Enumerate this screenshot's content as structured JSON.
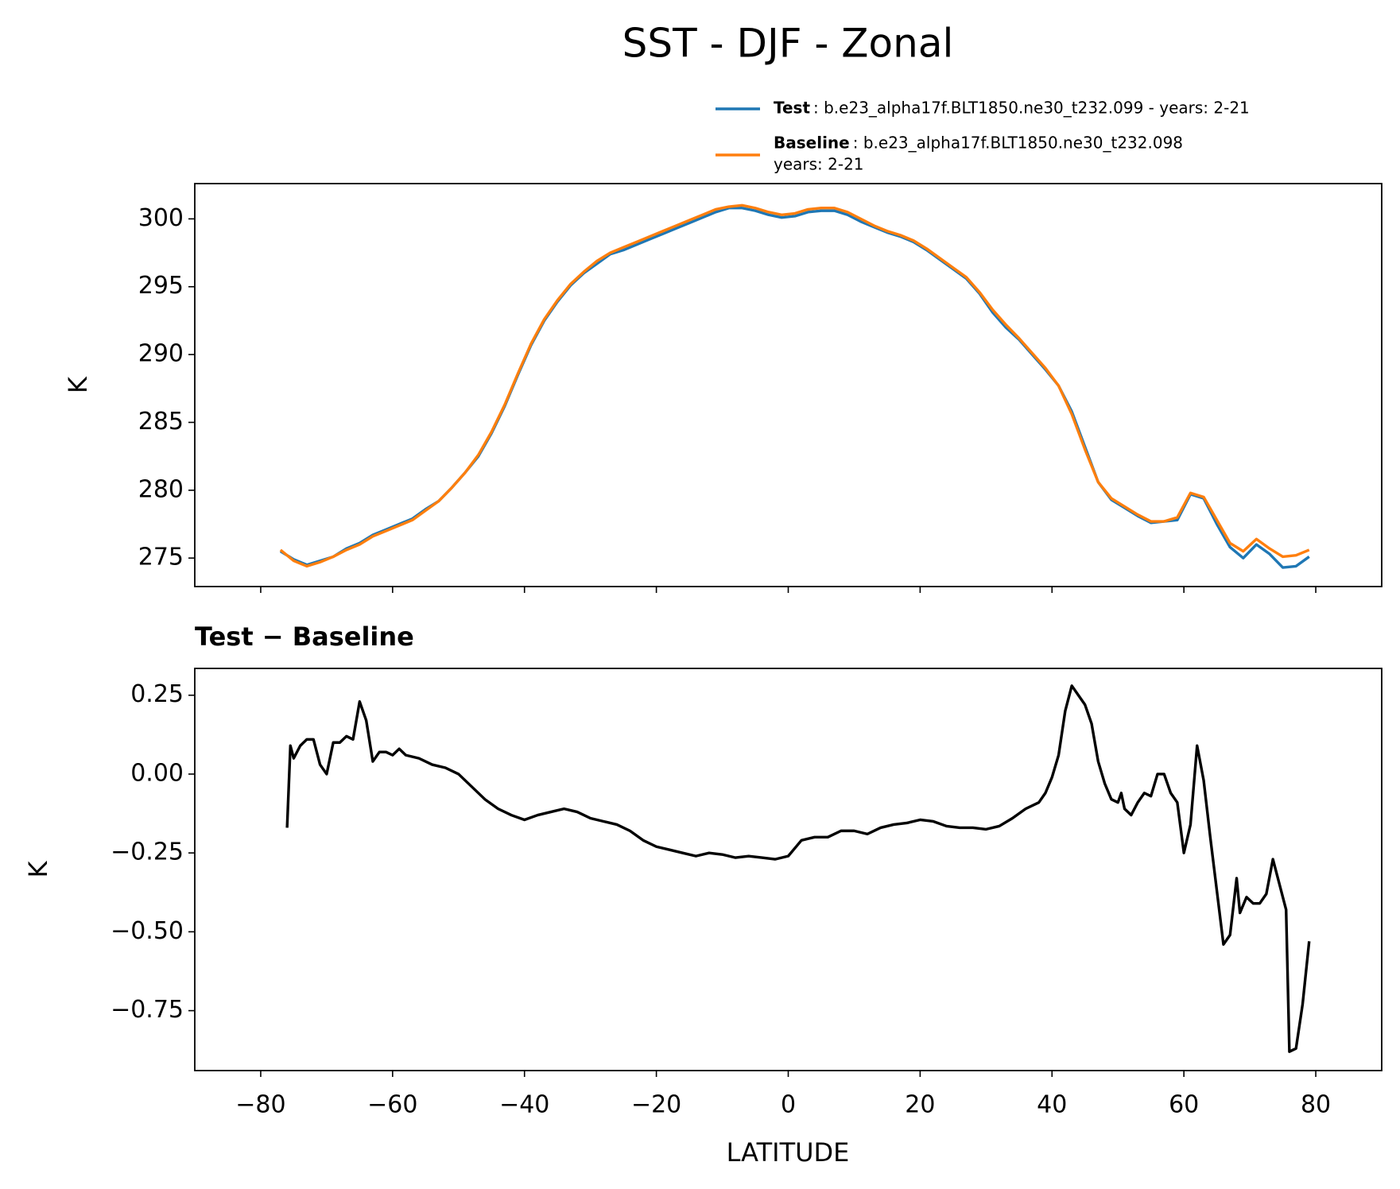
{
  "chart_data": [
    {
      "type": "line",
      "title": "SST - DJF - Zonal",
      "ylabel": "K",
      "x": [
        -77,
        -75,
        -73,
        -71,
        -69,
        -67,
        -65,
        -63,
        -61,
        -59,
        -57,
        -55,
        -53,
        -51,
        -49,
        -47,
        -45,
        -43,
        -41,
        -39,
        -37,
        -35,
        -33,
        -31,
        -29,
        -27,
        -25,
        -23,
        -21,
        -19,
        -17,
        -15,
        -13,
        -11,
        -9,
        -7,
        -5,
        -3,
        -1,
        1,
        3,
        5,
        7,
        9,
        11,
        13,
        15,
        17,
        19,
        21,
        23,
        25,
        27,
        29,
        31,
        33,
        35,
        37,
        39,
        41,
        43,
        45,
        47,
        49,
        51,
        53,
        55,
        57,
        59,
        61,
        63,
        65,
        67,
        69,
        71,
        73,
        75,
        77,
        79
      ],
      "series": [
        {
          "name": "Test",
          "label_lines": [
            ": b.e23_alpha17f.BLT1850.ne30_t232.099 - years: 2-21"
          ],
          "color": "#1f77b4",
          "values": [
            275.5,
            274.9,
            274.5,
            274.8,
            275.1,
            275.7,
            276.1,
            276.7,
            277.1,
            277.5,
            277.9,
            278.6,
            279.2,
            280.2,
            281.3,
            282.5,
            284.2,
            286.2,
            288.5,
            290.7,
            292.5,
            293.9,
            295.1,
            296.0,
            296.7,
            297.4,
            297.7,
            298.1,
            298.5,
            298.9,
            299.3,
            299.7,
            300.1,
            300.5,
            300.8,
            300.8,
            300.6,
            300.3,
            300.1,
            300.2,
            300.5,
            300.6,
            300.6,
            300.3,
            299.8,
            299.4,
            299.0,
            298.7,
            298.3,
            297.7,
            297.0,
            296.3,
            295.6,
            294.5,
            293.1,
            292.0,
            291.1,
            290.0,
            288.9,
            287.7,
            285.8,
            283.2,
            280.6,
            279.3,
            278.7,
            278.1,
            277.6,
            277.7,
            277.8,
            279.7,
            279.4,
            277.5,
            275.8,
            275.0,
            276.0,
            275.3,
            274.3,
            274.4,
            275.1
          ]
        },
        {
          "name": "Baseline",
          "label_lines": [
            ": b.e23_alpha17f.BLT1850.ne30_t232.098",
            "years: 2-21"
          ],
          "color": "#ff7f0e",
          "values": [
            275.6,
            274.8,
            274.4,
            274.7,
            275.1,
            275.6,
            276.0,
            276.6,
            277.0,
            277.4,
            277.8,
            278.5,
            279.2,
            280.2,
            281.3,
            282.6,
            284.3,
            286.3,
            288.6,
            290.8,
            292.6,
            294.0,
            295.2,
            296.1,
            296.9,
            297.5,
            297.9,
            298.3,
            298.7,
            299.1,
            299.5,
            299.9,
            300.3,
            300.7,
            300.9,
            301.0,
            300.8,
            300.5,
            300.3,
            300.4,
            300.7,
            300.8,
            300.8,
            300.5,
            300.0,
            299.5,
            299.1,
            298.8,
            298.4,
            297.8,
            297.1,
            296.4,
            295.7,
            294.6,
            293.3,
            292.2,
            291.2,
            290.1,
            289.0,
            287.7,
            285.6,
            283.0,
            280.6,
            279.4,
            278.8,
            278.2,
            277.7,
            277.7,
            278.0,
            279.8,
            279.5,
            277.8,
            276.1,
            275.5,
            276.4,
            275.7,
            275.1,
            275.2,
            275.6
          ]
        }
      ],
      "xlim": [
        -90,
        90
      ],
      "xticks": [
        -80,
        -60,
        -40,
        -20,
        0,
        20,
        40,
        60,
        80
      ],
      "ylim": [
        272.9,
        302.6
      ],
      "yticks": [
        275,
        280,
        285,
        290,
        295,
        300
      ],
      "legend": "upper right"
    },
    {
      "type": "line",
      "subtitle": "Test − Baseline",
      "ylabel": "K",
      "xlabel": "LATITUDE",
      "x": [
        -76,
        -75.5,
        -75,
        -74,
        -73,
        -72,
        -71,
        -70,
        -69,
        -68,
        -67,
        -66,
        -65,
        -64,
        -63,
        -62,
        -61,
        -60,
        -59,
        -58,
        -56,
        -54,
        -52,
        -50,
        -48,
        -46,
        -44,
        -42,
        -40,
        -38,
        -36,
        -34,
        -32,
        -30,
        -28,
        -26,
        -24,
        -22,
        -20,
        -18,
        -16,
        -14,
        -12,
        -10,
        -8,
        -6,
        -4,
        -2,
        -1,
        0,
        2,
        4,
        6,
        8,
        10,
        12,
        14,
        16,
        18,
        20,
        22,
        24,
        26,
        28,
        30,
        32,
        34,
        36,
        38,
        39,
        40,
        41,
        42,
        43,
        44,
        45,
        46,
        47,
        48,
        49,
        50,
        50.5,
        51,
        52,
        53,
        54,
        55,
        56,
        57,
        58,
        59,
        60,
        61,
        62,
        63,
        64,
        65,
        66,
        67,
        68,
        68.5,
        69.5,
        70.5,
        71.5,
        72.5,
        73.5,
        74.5,
        75.5,
        76,
        77,
        78,
        79
      ],
      "values": [
        -0.17,
        0.09,
        0.05,
        0.09,
        0.11,
        0.11,
        0.03,
        0.0,
        0.1,
        0.1,
        0.12,
        0.11,
        0.23,
        0.17,
        0.04,
        0.07,
        0.07,
        0.06,
        0.08,
        0.06,
        0.05,
        0.03,
        0.02,
        0.0,
        -0.04,
        -0.08,
        -0.11,
        -0.13,
        -0.145,
        -0.13,
        -0.12,
        -0.11,
        -0.12,
        -0.14,
        -0.15,
        -0.16,
        -0.18,
        -0.21,
        -0.23,
        -0.24,
        -0.25,
        -0.26,
        -0.25,
        -0.255,
        -0.265,
        -0.26,
        -0.265,
        -0.27,
        -0.265,
        -0.26,
        -0.21,
        -0.2,
        -0.2,
        -0.18,
        -0.18,
        -0.19,
        -0.17,
        -0.16,
        -0.155,
        -0.145,
        -0.15,
        -0.165,
        -0.17,
        -0.17,
        -0.175,
        -0.165,
        -0.14,
        -0.11,
        -0.09,
        -0.06,
        -0.01,
        0.06,
        0.2,
        0.28,
        0.25,
        0.22,
        0.16,
        0.04,
        -0.03,
        -0.08,
        -0.09,
        -0.06,
        -0.11,
        -0.13,
        -0.09,
        -0.06,
        -0.07,
        0.0,
        0.0,
        -0.06,
        -0.09,
        -0.25,
        -0.16,
        0.09,
        -0.02,
        -0.2,
        -0.37,
        -0.54,
        -0.51,
        -0.33,
        -0.44,
        -0.39,
        -0.41,
        -0.41,
        -0.38,
        -0.27,
        -0.35,
        -0.43,
        -0.88,
        -0.87,
        -0.73,
        -0.53
      ],
      "color": "#000000",
      "xlim": [
        -90,
        90
      ],
      "xticks": [
        {
          "value": -80,
          "label": "−80"
        },
        {
          "value": -60,
          "label": "−60"
        },
        {
          "value": -40,
          "label": "−40"
        },
        {
          "value": -20,
          "label": "−20"
        },
        0,
        20,
        40,
        60,
        80
      ],
      "ylim": [
        -0.94,
        0.335
      ],
      "yticks": [
        {
          "value": 0.25,
          "label": "0.25"
        },
        {
          "value": 0,
          "label": "0.00"
        },
        {
          "value": -0.25,
          "label": "−0.25"
        },
        {
          "value": -0.5,
          "label": "−0.50"
        },
        {
          "value": -0.75,
          "label": "−0.75"
        }
      ]
    }
  ]
}
